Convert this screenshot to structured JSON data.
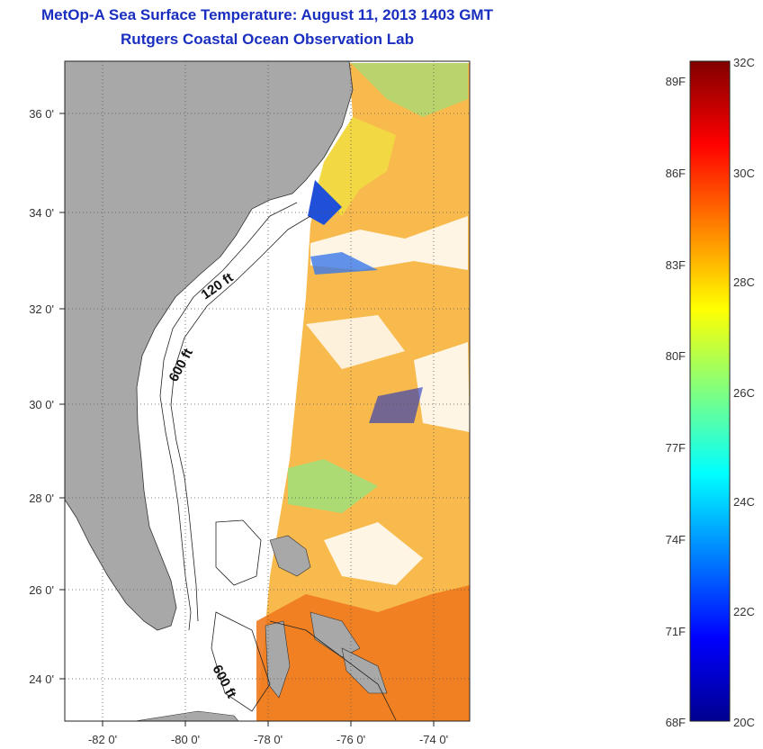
{
  "title": "MetOp-A Sea Surface Temperature:  August 11, 2013 1403 GMT",
  "subtitle": "Rutgers Coastal Ocean Observation Lab",
  "map": {
    "lon_labels": [
      "-82 0'",
      "-80 0'",
      "-78 0'",
      "-76 0'",
      "-74 0'"
    ],
    "lat_labels": [
      "36 0'",
      "34 0'",
      "32 0'",
      "30 0'",
      "28 0'",
      "26 0'",
      "24 0'"
    ],
    "isobath_labels": [
      "120 ft",
      "600 ft",
      "600 ft"
    ],
    "colors": {
      "land": "#a8a8a8",
      "ocean": "#ffffff",
      "frame": "#222222"
    }
  },
  "colorbar": {
    "celsius_labels": [
      "32C",
      "30C",
      "28C",
      "26C",
      "24C",
      "22C",
      "20C"
    ],
    "fahrenheit_labels": [
      "89F",
      "86F",
      "83F",
      "80F",
      "77F",
      "74F",
      "71F",
      "68F"
    ],
    "stops": [
      "#00008f",
      "#0000ff",
      "#0080ff",
      "#00ffff",
      "#80ff80",
      "#ffff00",
      "#ff8000",
      "#ff0000",
      "#800000"
    ]
  }
}
